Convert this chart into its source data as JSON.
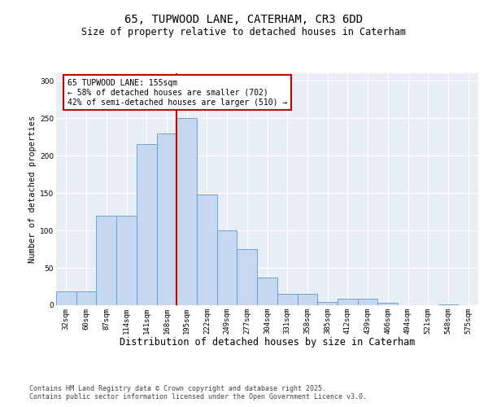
{
  "title": "65, TUPWOOD LANE, CATERHAM, CR3 6DD",
  "subtitle": "Size of property relative to detached houses in Caterham",
  "xlabel": "Distribution of detached houses by size in Caterham",
  "ylabel": "Number of detached properties",
  "categories": [
    "32sqm",
    "60sqm",
    "87sqm",
    "114sqm",
    "141sqm",
    "168sqm",
    "195sqm",
    "222sqm",
    "249sqm",
    "277sqm",
    "304sqm",
    "331sqm",
    "358sqm",
    "385sqm",
    "412sqm",
    "439sqm",
    "466sqm",
    "494sqm",
    "521sqm",
    "548sqm",
    "575sqm"
  ],
  "values": [
    18,
    18,
    120,
    120,
    215,
    230,
    250,
    148,
    100,
    75,
    37,
    15,
    15,
    4,
    9,
    9,
    3,
    0,
    0,
    1,
    0
  ],
  "bar_color": "#c5d8f0",
  "bar_edge_color": "#5b9bd5",
  "redline_index": 6,
  "redline_color": "#cc0000",
  "annotation_text": "65 TUPWOOD LANE: 155sqm\n← 58% of detached houses are smaller (702)\n42% of semi-detached houses are larger (510) →",
  "annotation_box_facecolor": "#ffffff",
  "annotation_box_edgecolor": "#cc0000",
  "ylim": [
    0,
    310
  ],
  "yticks": [
    0,
    50,
    100,
    150,
    200,
    250,
    300
  ],
  "plot_bg_color": "#e8eef5",
  "grid_color": "#d0d8e4",
  "footer_line1": "Contains HM Land Registry data © Crown copyright and database right 2025.",
  "footer_line2": "Contains public sector information licensed under the Open Government Licence v3.0.",
  "title_fontsize": 10,
  "subtitle_fontsize": 8.5,
  "xlabel_fontsize": 8.5,
  "ylabel_fontsize": 7.5,
  "tick_fontsize": 6.5,
  "ann_fontsize": 7,
  "footer_fontsize": 6
}
